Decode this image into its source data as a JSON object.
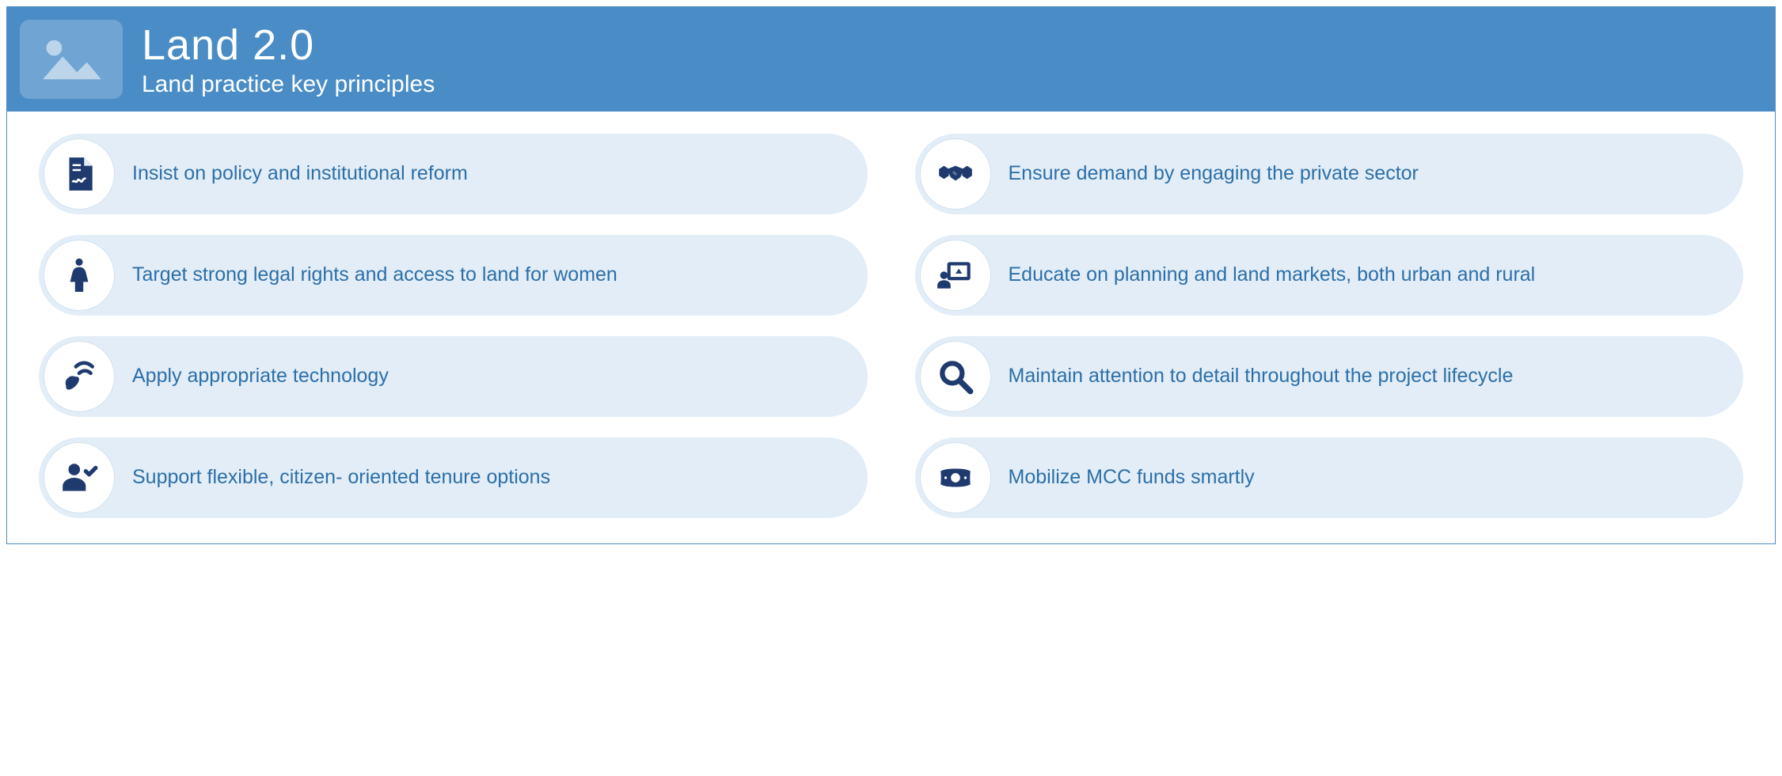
{
  "header": {
    "title": "Land 2.0",
    "subtitle": "Land practice key principles",
    "bg_color": "#4a8dc6",
    "icon_bg": "#6fa4d3",
    "text_color": "#ffffff"
  },
  "body": {
    "bg_color": "#ffffff",
    "pill_bg": "#e2edf7",
    "pill_text_color": "#2c6fa8",
    "icon_color": "#1e3a6e",
    "circle_bg": "#ffffff",
    "circle_border": "#d2e2f0"
  },
  "principles": [
    {
      "icon": "document",
      "text": "Insist on policy and institutional reform"
    },
    {
      "icon": "handshake",
      "text": "Ensure demand by engaging the private sector"
    },
    {
      "icon": "woman",
      "text": "Target strong legal rights and access to land for women"
    },
    {
      "icon": "presentation",
      "text": "Educate on planning and land markets, both urban and rural"
    },
    {
      "icon": "satellite",
      "text": "Apply appropriate technology"
    },
    {
      "icon": "magnify",
      "text": "Maintain attention to detail throughout the project lifecycle"
    },
    {
      "icon": "user-check",
      "text": "Support flexible, citizen- oriented tenure options"
    },
    {
      "icon": "money",
      "text": "Mobilize MCC funds smartly"
    }
  ],
  "icons": {
    "document": "<svg viewBox='0 0 24 24'><path fill='#1e3a6e' d='M6 2h9l5 5v15H6V2z'/><path fill='#fff' d='M15 2v5h5' opacity='0'/><path fill='#e2edf7' d='M15 2l5 5h-5V2z'/><rect x='8' y='6' width='5' height='1.2' fill='#fff'/><rect x='8' y='9' width='5' height='1.2' fill='#fff'/><path d='M8 17c1-2 2 1 3-1s2 2 3 0 2-1 2-1' stroke='#fff' stroke-width='1.3' fill='none'/></svg>",
    "handshake": "<svg viewBox='0 0 24 24'><path fill='#1e3a6e' d='M2 9l3-2 3 2v4l-3 2-3-2V9zm20 0l-3-2-3 2v4l3 2 3-2V9z'/><path fill='#1e3a6e' d='M7 9l5-2 5 2-2 5-3 2-3-2-2-5z'/><path fill='#fff' d='M11 10l2 2-1 1-2-2 1-1z' opacity='0.3'/></svg>",
    "woman": "<svg viewBox='0 0 24 24'><circle cx='12' cy='4' r='2.2' fill='#1e3a6e'/><path fill='#1e3a6e' d='M12 7c-2.5 0-3.5 1.5-4 3l-1.5 6h3v6h5v-6h3L16 10c-0.5-1.5-1.5-3-4-3z'/></svg>",
    "presentation": "<svg viewBox='0 0 24 24'><rect x='7' y='4' width='14' height='11' rx='1.5' fill='#1e3a6e'/><rect x='9' y='6' width='10' height='7' fill='#fff'/><path fill='#1e3a6e' d='M14 8l-2 3h4l-2-3z'/><circle cx='5' cy='12' r='2.3' fill='#1e3a6e'/><path fill='#1e3a6e' d='M5 15c-2.2 0-4 1.3-4 3v2h8v-2c0-1.7-1.8-3-4-3z'/></svg>",
    "satellite": "<svg viewBox='0 0 24 24'><path fill='#1e3a6e' d='M5 19c-1.5-1.5-2-4 0-6s4.5-1.5 6 0l-6 6z'/><ellipse cx='8' cy='16' rx='5' ry='2.5' transform='rotate(-45 8 16)' fill='#1e3a6e'/><path d='M12 10c2-2 5-2 7 0' stroke='#1e3a6e' stroke-width='2.2' fill='none' stroke-linecap='round'/><path d='M14 6c3-3 7-3 10 0' stroke='#1e3a6e' stroke-width='2.2' fill='none' stroke-linecap='round' transform='translate(-4 0)'/></svg>",
    "magnify": "<svg viewBox='0 0 24 24'><circle cx='10' cy='10' r='6' stroke='#1e3a6e' stroke-width='3' fill='none'/><line x1='15' y1='15' x2='21' y2='21' stroke='#1e3a6e' stroke-width='3.5' stroke-linecap='round'/></svg>",
    "user-check": "<svg viewBox='0 0 24 24'><circle cx='9' cy='7' r='3.5' fill='#1e3a6e'/><path fill='#1e3a6e' d='M9 12c-4 0-7 2.5-7 5v3h14v-3c0-2.5-3-5-7-5z'/><path d='M16 8l2 2 4-4' stroke='#1e3a6e' stroke-width='2.5' fill='none' stroke-linecap='round' stroke-linejoin='round'/></svg>",
    "money": "<svg viewBox='0 0 24 24'><path fill='#1e3a6e' d='M3 8c2-1 4-1.5 9-1.5S19 7 21 8c-0.3 3-0.3 5 0 8-2 1-4 1.5-9 1.5S5 17 3 16c0.3-3 0.3-5 0-8z'/><circle cx='12' cy='12' r='2.8' fill='#fff'/><circle cx='6' cy='12' r='0.8' fill='#fff'/><circle cx='18' cy='12' r='0.8' fill='#fff'/></svg>",
    "image-placeholder": "<svg viewBox='0 0 100 80' width='90' height='72'><rect x='0' y='0' width='100' height='80' rx='8' fill='none'/><circle cx='26' cy='24' r='11' fill='#bcd5ea'/><path d='M10 68 L38 36 L58 58 L72 44 L92 68 Z' fill='#bcd5ea'/></svg>"
  }
}
